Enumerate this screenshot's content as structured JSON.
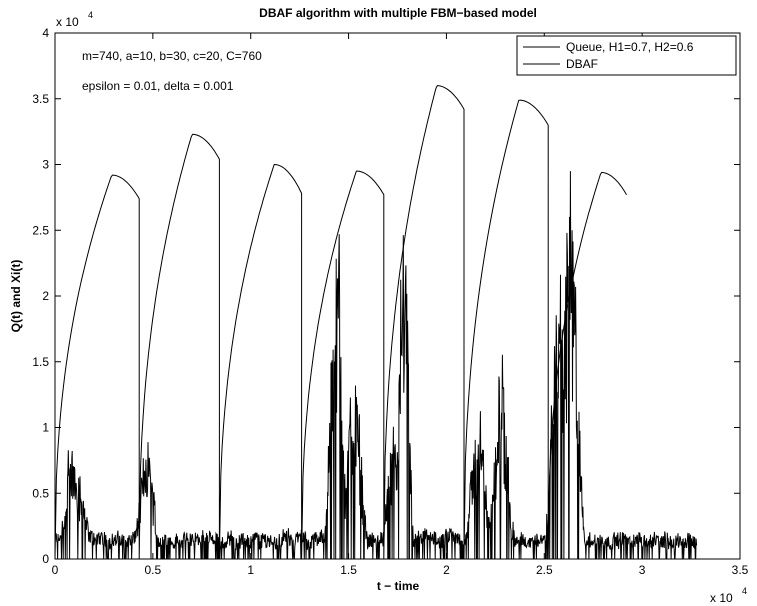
{
  "chart_data": {
    "type": "line",
    "title": "DBAF algorithm with multiple FBM−based model",
    "xlabel": "t − time",
    "ylabel": "Q(t) and Xi(t)",
    "xlim": [
      0,
      35000
    ],
    "ylim": [
      0,
      40000
    ],
    "x_ticks": [
      0,
      5000,
      10000,
      15000,
      20000,
      25000,
      30000,
      35000
    ],
    "x_tick_labels": [
      "0",
      "0.5",
      "1",
      "1.5",
      "2",
      "2.5",
      "3",
      "3.5"
    ],
    "y_ticks": [
      0,
      5000,
      10000,
      15000,
      20000,
      25000,
      30000,
      35000,
      40000
    ],
    "y_tick_labels": [
      "0",
      "0.5",
      "1",
      "1.5",
      "2",
      "2.5",
      "3",
      "3.5",
      "4"
    ],
    "x_multiplier": {
      "base": "x 10",
      "exp": "4"
    },
    "y_multiplier": {
      "base": "x 10",
      "exp": "4"
    },
    "grid": false,
    "legend_position": "top-right",
    "annotations": [
      "m=740, a=10, b=30, c=20, C=760",
      "epsilon = 0.01, delta = 0.001"
    ],
    "series": [
      {
        "name": "Queue, H1=0.7, H2=0.6",
        "color": "#000000",
        "style": "noisy",
        "x_end": 32800,
        "bursts": [
          {
            "center": 1000,
            "peak": 9000,
            "width": 600
          },
          {
            "center": 4700,
            "peak": 8500,
            "width": 500
          },
          {
            "center": 14400,
            "peak": 25000,
            "width": 400
          },
          {
            "center": 15300,
            "peak": 14000,
            "width": 500
          },
          {
            "center": 17800,
            "peak": 23000,
            "width": 350
          },
          {
            "center": 17300,
            "peak": 11000,
            "width": 400
          },
          {
            "center": 21600,
            "peak": 11000,
            "width": 500
          },
          {
            "center": 22800,
            "peak": 15000,
            "width": 500
          },
          {
            "center": 26300,
            "peak": 29000,
            "width": 500
          },
          {
            "center": 25800,
            "peak": 21000,
            "width": 500
          }
        ],
        "baseline": 2000
      },
      {
        "name": "DBAF",
        "color": "#000000",
        "style": "smooth",
        "segments": [
          {
            "x0": 0,
            "x1": 4300,
            "peak": 29200,
            "x_peak": 2900,
            "y_end": 27400
          },
          {
            "x0": 4300,
            "x1": 8400,
            "peak": 32300,
            "x_peak": 7000,
            "y_end": 30400
          },
          {
            "x0": 8400,
            "x1": 12600,
            "peak": 30000,
            "x_peak": 11200,
            "y_end": 27800
          },
          {
            "x0": 12600,
            "x1": 16800,
            "peak": 29500,
            "x_peak": 15400,
            "y_end": 27700
          },
          {
            "x0": 16800,
            "x1": 20900,
            "peak": 36000,
            "x_peak": 19500,
            "y_end": 34200
          },
          {
            "x0": 20900,
            "x1": 25200,
            "peak": 34900,
            "x_peak": 23700,
            "y_end": 33000
          },
          {
            "x0": 25200,
            "x1": 29200,
            "peak": 29400,
            "x_peak": 27900,
            "y_end": 27700
          }
        ]
      }
    ]
  }
}
